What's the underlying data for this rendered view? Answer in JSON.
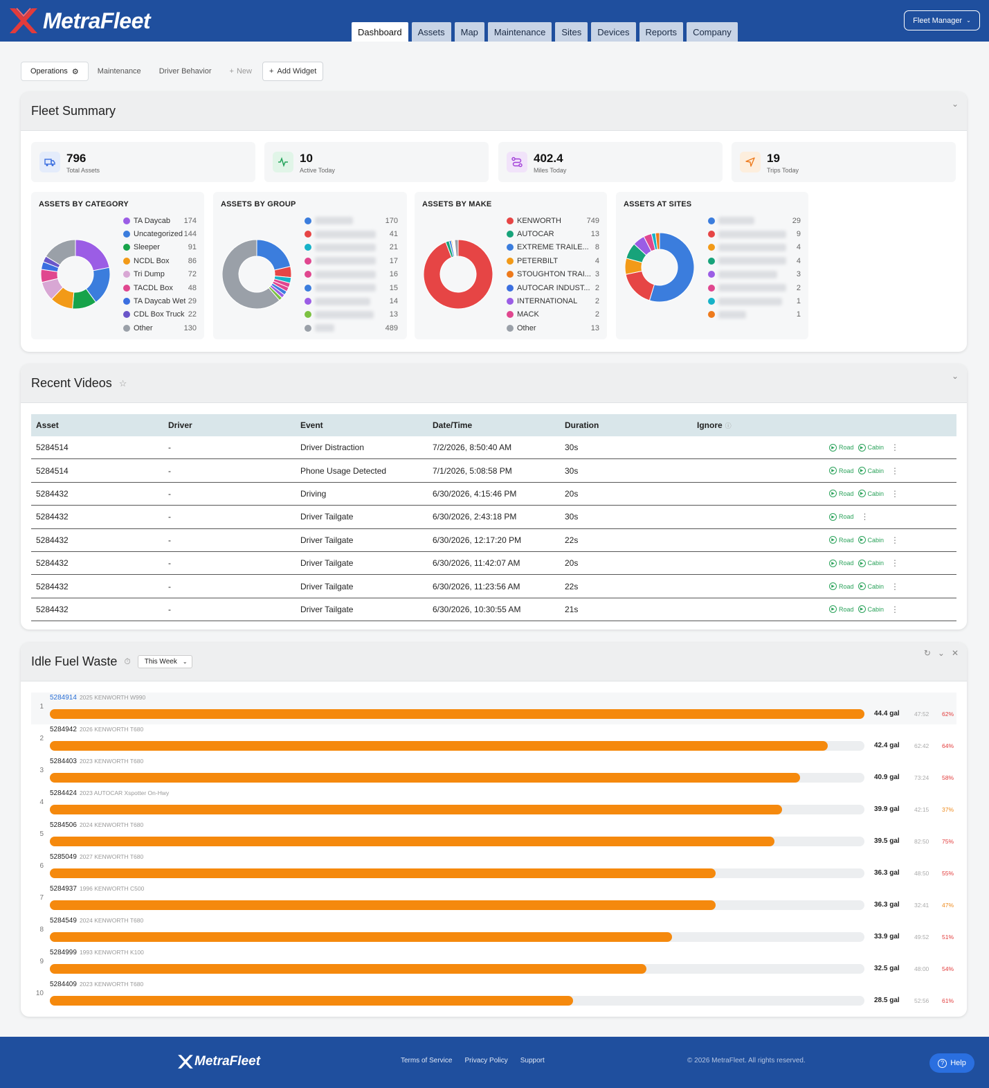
{
  "header": {
    "brand": "MetraFleet",
    "nav": [
      "Dashboard",
      "Assets",
      "Map",
      "Maintenance",
      "Sites",
      "Devices",
      "Reports",
      "Company"
    ],
    "active_nav": "Dashboard",
    "role_button": "Fleet Manager"
  },
  "dash_tabs": {
    "operations": "Operations",
    "maintenance": "Maintenance",
    "driver_behavior": "Driver Behavior",
    "new": "New",
    "add_widget": "Add Widget"
  },
  "fleet_summary": {
    "title": "Fleet Summary",
    "kpis": [
      {
        "value": "796",
        "label": "Total Assets",
        "color": "#3b6fe0",
        "bg": "#e4ecfb",
        "icon": "truck-icon"
      },
      {
        "value": "10",
        "label": "Active Today",
        "color": "#22a35a",
        "bg": "#e1f5e8",
        "icon": "activity-icon"
      },
      {
        "value": "402.4",
        "label": "Miles Today",
        "color": "#a13fd8",
        "bg": "#f1e3fa",
        "icon": "route-icon"
      },
      {
        "value": "19",
        "label": "Trips Today",
        "color": "#ee7a1c",
        "bg": "#fdeedd",
        "icon": "navigation-icon"
      }
    ],
    "by_category": {
      "title": "ASSETS BY CATEGORY",
      "items": [
        {
          "label": "TA Daycab",
          "value": 174,
          "color": "#9b5de5"
        },
        {
          "label": "Uncategorized",
          "value": 144,
          "color": "#3b7ddd"
        },
        {
          "label": "Sleeper",
          "value": 91,
          "color": "#17a34a"
        },
        {
          "label": "NCDL Box",
          "value": 86,
          "color": "#f29a18"
        },
        {
          "label": "Tri Dump",
          "value": 72,
          "color": "#d8a7d4"
        },
        {
          "label": "TACDL Box",
          "value": 48,
          "color": "#e0478f"
        },
        {
          "label": "TA Daycab Wet",
          "value": 29,
          "color": "#3b6fe0"
        },
        {
          "label": "CDL Box Truck",
          "value": 22,
          "color": "#6a56c9"
        },
        {
          "label": "Other",
          "value": 130,
          "color": "#9aa0a8"
        }
      ]
    },
    "by_group": {
      "title": "ASSETS BY GROUP",
      "items": [
        {
          "value": 170,
          "color": "#3b7ddd"
        },
        {
          "value": 41,
          "color": "#e64545"
        },
        {
          "value": 21,
          "color": "#17b2c8"
        },
        {
          "value": 17,
          "color": "#e0478f"
        },
        {
          "value": 16,
          "color": "#e0478f"
        },
        {
          "value": 15,
          "color": "#3b7ddd"
        },
        {
          "value": 14,
          "color": "#9b5de5"
        },
        {
          "value": 13,
          "color": "#7cc142"
        },
        {
          "value": 489,
          "color": "#9aa0a8"
        }
      ]
    },
    "by_make": {
      "title": "ASSETS BY MAKE",
      "items": [
        {
          "label": "KENWORTH",
          "value": 749,
          "color": "#e64545"
        },
        {
          "label": "AUTOCAR",
          "value": 13,
          "color": "#17a37a"
        },
        {
          "label": "EXTREME TRAILE...",
          "value": 8,
          "color": "#3b7ddd"
        },
        {
          "label": "PETERBILT",
          "value": 4,
          "color": "#f29a18"
        },
        {
          "label": "STOUGHTON TRAI...",
          "value": 3,
          "color": "#ee7a1c"
        },
        {
          "label": "AUTOCAR INDUST...",
          "value": 2,
          "color": "#3b6fe0"
        },
        {
          "label": "INTERNATIONAL",
          "value": 2,
          "color": "#9b5de5"
        },
        {
          "label": "MACK",
          "value": 2,
          "color": "#e0478f"
        },
        {
          "label": "Other",
          "value": 13,
          "color": "#9aa0a8"
        }
      ]
    },
    "at_sites": {
      "title": "ASSETS AT SITES",
      "items": [
        {
          "value": 29,
          "color": "#3b7ddd"
        },
        {
          "value": 9,
          "color": "#e64545"
        },
        {
          "value": 4,
          "color": "#f29a18"
        },
        {
          "value": 4,
          "color": "#17a37a"
        },
        {
          "value": 3,
          "color": "#9b5de5"
        },
        {
          "value": 2,
          "color": "#e0478f"
        },
        {
          "value": 1,
          "color": "#17b2c8"
        },
        {
          "value": 1,
          "color": "#ee7a1c"
        }
      ]
    }
  },
  "recent_videos": {
    "title": "Recent Videos",
    "columns": [
      "Asset",
      "Driver",
      "Event",
      "Date/Time",
      "Duration",
      "Ignore"
    ],
    "road_label": "Road",
    "cabin_label": "Cabin",
    "rows": [
      {
        "asset": "5284514",
        "driver": "-",
        "event": "Driver Distraction",
        "datetime": "7/2/2026, 8:50:40 AM",
        "duration": "30s",
        "cabin": true
      },
      {
        "asset": "5284514",
        "driver": "-",
        "event": "Phone Usage Detected",
        "datetime": "7/1/2026, 5:08:58 PM",
        "duration": "30s",
        "cabin": true
      },
      {
        "asset": "5284432",
        "driver": "-",
        "event": "Driving",
        "datetime": "6/30/2026, 4:15:46 PM",
        "duration": "20s",
        "cabin": true
      },
      {
        "asset": "5284432",
        "driver": "-",
        "event": "Driver Tailgate",
        "datetime": "6/30/2026, 2:43:18 PM",
        "duration": "30s",
        "cabin": false
      },
      {
        "asset": "5284432",
        "driver": "-",
        "event": "Driver Tailgate",
        "datetime": "6/30/2026, 12:17:20 PM",
        "duration": "22s",
        "cabin": true
      },
      {
        "asset": "5284432",
        "driver": "-",
        "event": "Driver Tailgate",
        "datetime": "6/30/2026, 11:42:07 AM",
        "duration": "20s",
        "cabin": true
      },
      {
        "asset": "5284432",
        "driver": "-",
        "event": "Driver Tailgate",
        "datetime": "6/30/2026, 11:23:56 AM",
        "duration": "22s",
        "cabin": true
      },
      {
        "asset": "5284432",
        "driver": "-",
        "event": "Driver Tailgate",
        "datetime": "6/30/2026, 10:30:55 AM",
        "duration": "21s",
        "cabin": true
      }
    ]
  },
  "idle_fuel": {
    "title": "Idle Fuel Waste",
    "period": "This Week",
    "max_gal": 44.4,
    "rows": [
      {
        "rank": "1",
        "asset": "5284914",
        "desc": "2025 KENWORTH W990",
        "gal": 44.4,
        "gal_text": "44.4 gal",
        "time": "47:52",
        "pct": "62%",
        "pct_color": "#e23b3b"
      },
      {
        "rank": "2",
        "asset": "5284942",
        "desc": "2026 KENWORTH T680",
        "gal": 42.4,
        "gal_text": "42.4 gal",
        "time": "62:42",
        "pct": "64%",
        "pct_color": "#e23b3b"
      },
      {
        "rank": "3",
        "asset": "5284403",
        "desc": "2023 KENWORTH T680",
        "gal": 40.9,
        "gal_text": "40.9 gal",
        "time": "73:24",
        "pct": "58%",
        "pct_color": "#e23b3b"
      },
      {
        "rank": "4",
        "asset": "5284424",
        "desc": "2023 AUTOCAR Xspotter On-Hwy",
        "gal": 39.9,
        "gal_text": "39.9 gal",
        "time": "42:15",
        "pct": "37%",
        "pct_color": "#ee8a1c"
      },
      {
        "rank": "5",
        "asset": "5284506",
        "desc": "2024 KENWORTH T680",
        "gal": 39.5,
        "gal_text": "39.5 gal",
        "time": "82:50",
        "pct": "75%",
        "pct_color": "#e23b3b"
      },
      {
        "rank": "6",
        "asset": "5285049",
        "desc": "2027 KENWORTH T680",
        "gal": 36.3,
        "gal_text": "36.3 gal",
        "time": "48:50",
        "pct": "55%",
        "pct_color": "#e23b3b"
      },
      {
        "rank": "7",
        "asset": "5284937",
        "desc": "1996 KENWORTH C500",
        "gal": 36.3,
        "gal_text": "36.3 gal",
        "time": "32:41",
        "pct": "47%",
        "pct_color": "#ee8a1c"
      },
      {
        "rank": "8",
        "asset": "5284549",
        "desc": "2024 KENWORTH T680",
        "gal": 33.9,
        "gal_text": "33.9 gal",
        "time": "49:52",
        "pct": "51%",
        "pct_color": "#e23b3b"
      },
      {
        "rank": "9",
        "asset": "5284999",
        "desc": "1993 KENWORTH K100",
        "gal": 32.5,
        "gal_text": "32.5 gal",
        "time": "48:00",
        "pct": "54%",
        "pct_color": "#e23b3b"
      },
      {
        "rank": "10",
        "asset": "5284409",
        "desc": "2023 KENWORTH T680",
        "gal": 28.5,
        "gal_text": "28.5 gal",
        "time": "52:56",
        "pct": "61%",
        "pct_color": "#e23b3b"
      }
    ]
  },
  "footer": {
    "brand": "MetraFleet",
    "links": [
      "Terms of Service",
      "Privacy Policy",
      "Support"
    ],
    "copyright": "© 2026 MetraFleet. All rights reserved.",
    "help": "Help"
  }
}
